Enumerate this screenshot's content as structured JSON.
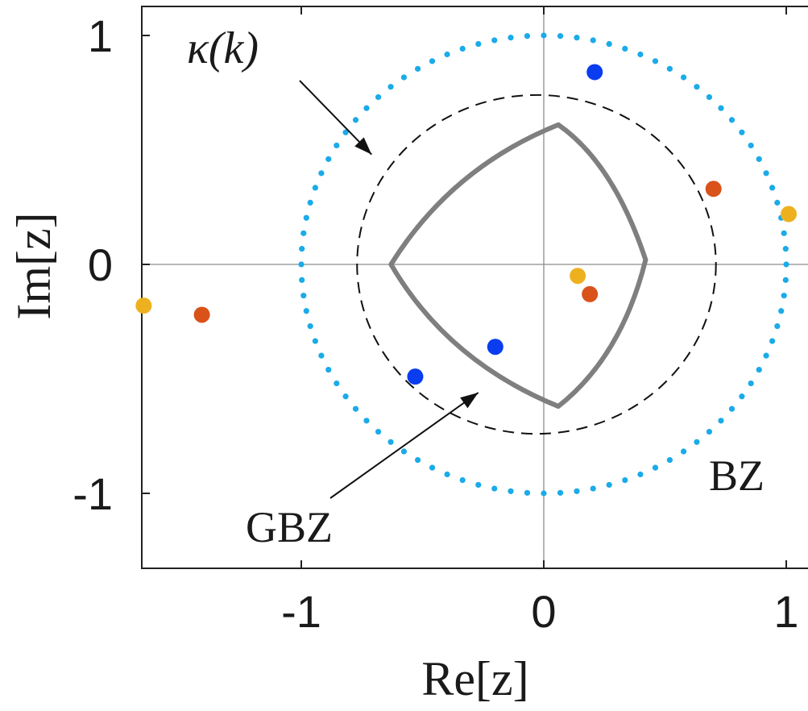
{
  "chart_data": {
    "type": "scatter",
    "title": "",
    "xlabel": "Re[z]",
    "ylabel": "Im[z]",
    "xlim": [
      -1.65,
      1.0
    ],
    "ylim": [
      -1.3,
      1.05
    ],
    "xticks": [
      "-1",
      "0",
      "1"
    ],
    "yticks": [
      "-1",
      "0",
      "1"
    ],
    "grid": "zero-lines",
    "curves": {
      "bz": {
        "label": "BZ",
        "radius": 1.0,
        "color": "#1aabe8",
        "style": "dotted"
      },
      "kappa": {
        "label": "κ(k)",
        "radius": 0.74,
        "center": [
          -0.03,
          0
        ],
        "color": "#111111",
        "style": "dashed"
      },
      "gbz": {
        "label": "GBZ",
        "color": "#7f7f7f",
        "style": "solid",
        "vertices": [
          [
            -0.63,
            0.0
          ],
          [
            0.06,
            0.61
          ],
          [
            0.42,
            0.02
          ],
          [
            0.06,
            -0.62
          ]
        ]
      }
    },
    "series": [
      {
        "color": "#0a3cf0",
        "points": [
          [
            0.21,
            0.84
          ],
          [
            -0.53,
            -0.49
          ],
          [
            -0.2,
            -0.36
          ]
        ]
      },
      {
        "color": "#d95219",
        "points": [
          [
            0.7,
            0.33
          ],
          [
            0.19,
            -0.13
          ],
          [
            -1.41,
            -0.22
          ]
        ]
      },
      {
        "color": "#edb120",
        "points": [
          [
            1.01,
            0.22
          ],
          [
            0.14,
            -0.05
          ],
          [
            -1.65,
            -0.18
          ]
        ]
      }
    ],
    "annotations": [
      {
        "text": "κ(k)",
        "arrow_to": [
          -0.71,
          0.48
        ]
      },
      {
        "text": "GBZ",
        "arrow_to": [
          -0.27,
          -0.56
        ]
      },
      {
        "text": "BZ"
      }
    ]
  }
}
